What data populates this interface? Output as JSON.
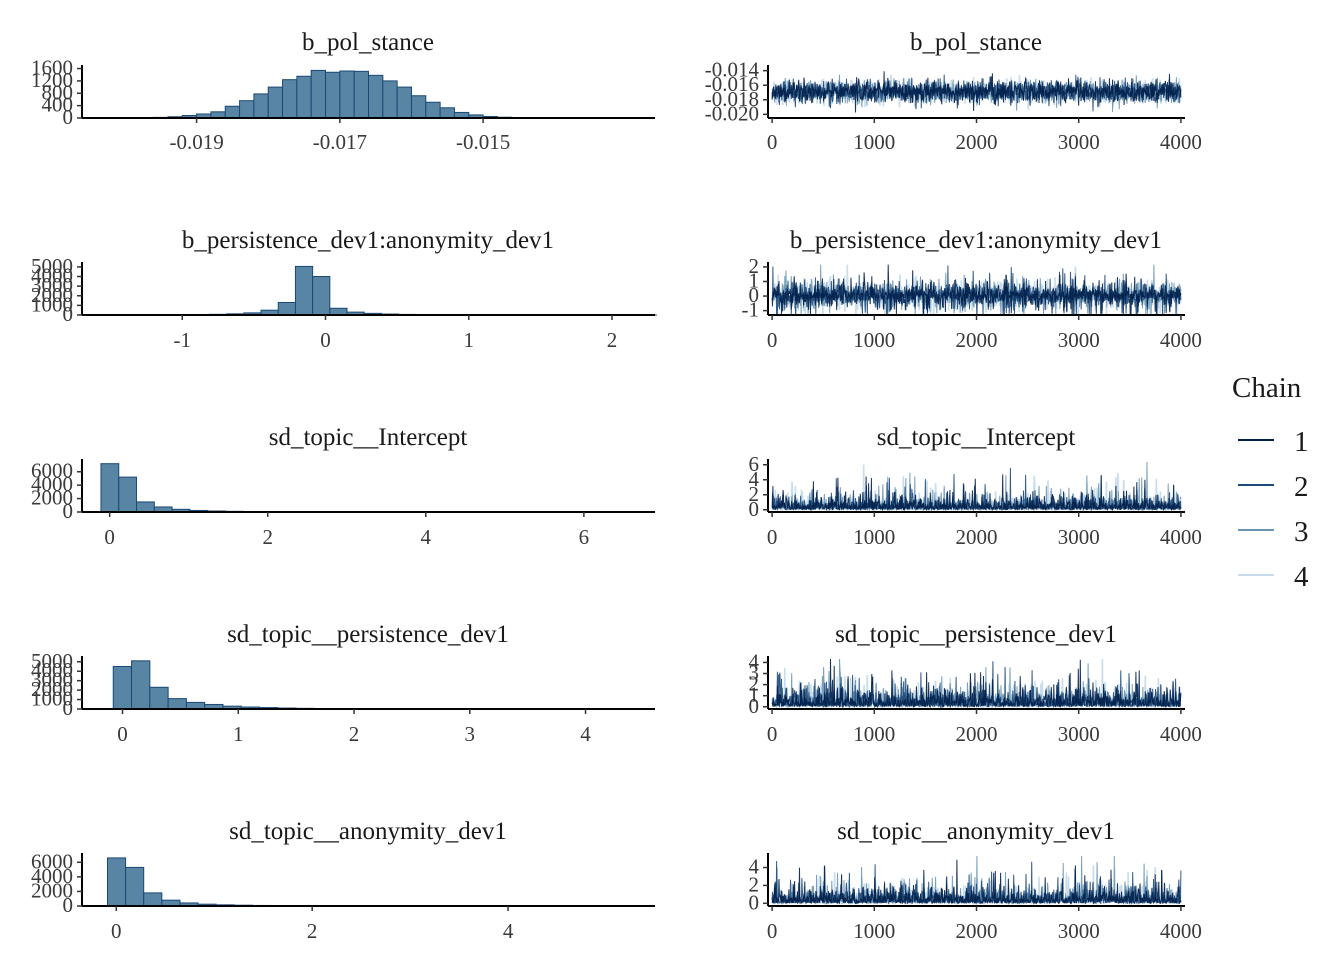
{
  "chart_data": [
    {
      "type": "bar",
      "title": "b_pol_stance",
      "panel": "histogram",
      "x_ticks": [
        "-0.019",
        "-0.017",
        "-0.015"
      ],
      "x_tick_values": [
        -0.019,
        -0.017,
        -0.015
      ],
      "xlim": [
        -0.0206,
        -0.0126
      ],
      "y_ticks": [
        "0",
        "400",
        "800",
        "1200",
        "1600"
      ],
      "y_tick_values": [
        0,
        400,
        800,
        1200,
        1600
      ],
      "ylim": [
        0,
        1650
      ],
      "bin_start": -0.02,
      "bin_width": 0.0002,
      "values": [
        5,
        10,
        20,
        40,
        80,
        130,
        200,
        380,
        560,
        780,
        1000,
        1240,
        1350,
        1540,
        1480,
        1520,
        1510,
        1380,
        1200,
        1000,
        720,
        510,
        330,
        180,
        100,
        50,
        25,
        10,
        5,
        2
      ]
    },
    {
      "type": "line",
      "title": "b_pol_stance",
      "panel": "trace",
      "x_ticks": [
        "0",
        "1000",
        "2000",
        "3000",
        "4000"
      ],
      "x_tick_values": [
        0,
        1000,
        2000,
        3000,
        4000
      ],
      "xlim": [
        -40,
        4040
      ],
      "y_ticks": [
        "-0.014",
        "-0.016",
        "-0.018",
        "-0.020"
      ],
      "y_tick_values": [
        -0.014,
        -0.016,
        -0.018,
        -0.02
      ],
      "ylim": [
        -0.0205,
        -0.0135
      ],
      "center": -0.0169,
      "spread": 0.0018,
      "noise": "normal",
      "seed": 11
    },
    {
      "type": "bar",
      "title": "b_persistence_dev1:anonymity_dev1",
      "panel": "histogram",
      "x_ticks": [
        "-1",
        "0",
        "1",
        "2"
      ],
      "x_tick_values": [
        -1,
        0,
        1,
        2
      ],
      "xlim": [
        -1.7,
        2.3
      ],
      "y_ticks": [
        "0",
        "1000",
        "2000",
        "3000",
        "4000",
        "5000"
      ],
      "y_tick_values": [
        0,
        1000,
        2000,
        3000,
        4000,
        5000
      ],
      "ylim": [
        0,
        5300
      ],
      "bin_start": -1.65,
      "bin_width": 0.12,
      "values": [
        5,
        8,
        10,
        15,
        20,
        30,
        45,
        70,
        120,
        220,
        500,
        1300,
        5050,
        4000,
        700,
        300,
        170,
        100,
        60,
        35,
        25,
        15,
        10,
        8,
        5,
        4,
        3,
        2,
        2,
        1,
        1,
        1,
        1
      ]
    },
    {
      "type": "line",
      "title": "b_persistence_dev1:anonymity_dev1",
      "panel": "trace",
      "x_ticks": [
        "0",
        "1000",
        "2000",
        "3000",
        "4000"
      ],
      "x_tick_values": [
        0,
        1000,
        2000,
        3000,
        4000
      ],
      "xlim": [
        -40,
        4040
      ],
      "y_ticks": [
        "-1",
        "0",
        "1",
        "2"
      ],
      "y_tick_values": [
        -1,
        0,
        1,
        2
      ],
      "ylim": [
        -1.3,
        2.2
      ],
      "center": 0.05,
      "spread": 0.35,
      "noise": "laplace",
      "seed": 23
    },
    {
      "type": "bar",
      "title": "sd_topic__Intercept",
      "panel": "histogram",
      "x_ticks": [
        "0",
        "2",
        "4",
        "6"
      ],
      "x_tick_values": [
        0,
        2,
        4,
        6
      ],
      "xlim": [
        -0.35,
        6.9
      ],
      "y_ticks": [
        "0",
        "2000",
        "4000",
        "6000"
      ],
      "y_tick_values": [
        0,
        2000,
        4000,
        6000
      ],
      "ylim": [
        0,
        7600
      ],
      "bin_start": -0.11,
      "bin_width": 0.225,
      "values": [
        7200,
        5200,
        1500,
        750,
        400,
        230,
        150,
        100,
        70,
        50,
        35,
        25,
        18,
        12,
        9,
        7,
        5,
        4,
        3,
        2,
        2,
        1,
        1,
        1,
        1,
        1,
        1,
        1,
        1,
        1
      ]
    },
    {
      "type": "line",
      "title": "sd_topic__Intercept",
      "panel": "trace",
      "x_ticks": [
        "0",
        "1000",
        "2000",
        "3000",
        "4000"
      ],
      "x_tick_values": [
        0,
        1000,
        2000,
        3000,
        4000
      ],
      "xlim": [
        -40,
        4040
      ],
      "y_ticks": [
        "0",
        "2",
        "4",
        "6"
      ],
      "y_tick_values": [
        0,
        2,
        4,
        6
      ],
      "ylim": [
        -0.3,
        6.5
      ],
      "center": 0.45,
      "spread": 0.55,
      "noise": "exp",
      "seed": 37
    },
    {
      "type": "bar",
      "title": "sd_topic__persistence_dev1",
      "panel": "histogram",
      "x_ticks": [
        "0",
        "1",
        "2",
        "3",
        "4"
      ],
      "x_tick_values": [
        0,
        1,
        2,
        3,
        4
      ],
      "xlim": [
        -0.35,
        4.6
      ],
      "y_ticks": [
        "0",
        "1000",
        "2000",
        "3000",
        "4000",
        "5000"
      ],
      "y_tick_values": [
        0,
        1000,
        2000,
        3000,
        4000,
        5000
      ],
      "ylim": [
        0,
        5400
      ],
      "bin_start": -0.08,
      "bin_width": 0.158,
      "values": [
        4500,
        5100,
        2300,
        1100,
        700,
        480,
        300,
        210,
        150,
        100,
        70,
        50,
        35,
        25,
        18,
        12,
        9,
        7,
        5,
        4,
        3,
        2,
        2,
        1,
        1,
        1,
        1,
        1,
        1
      ]
    },
    {
      "type": "line",
      "title": "sd_topic__persistence_dev1",
      "panel": "trace",
      "x_ticks": [
        "0",
        "1000",
        "2000",
        "3000",
        "4000"
      ],
      "x_tick_values": [
        0,
        1000,
        2000,
        3000,
        4000
      ],
      "xlim": [
        -40,
        4040
      ],
      "y_ticks": [
        "0",
        "1",
        "2",
        "3",
        "4"
      ],
      "y_tick_values": [
        0,
        1,
        2,
        3,
        4
      ],
      "ylim": [
        -0.2,
        4.4
      ],
      "center": 0.35,
      "spread": 0.5,
      "noise": "exp",
      "seed": 53
    },
    {
      "type": "bar",
      "title": "sd_topic__anonymity_dev1",
      "panel": "histogram",
      "x_ticks": [
        "0",
        "2",
        "4"
      ],
      "x_tick_values": [
        0,
        2,
        4
      ],
      "xlim": [
        -0.35,
        5.5
      ],
      "y_ticks": [
        "0",
        "2000",
        "4000",
        "6000"
      ],
      "y_tick_values": [
        0,
        2000,
        4000,
        6000
      ],
      "ylim": [
        0,
        7000
      ],
      "bin_start": -0.09,
      "bin_width": 0.185,
      "values": [
        6600,
        5300,
        1800,
        800,
        420,
        250,
        160,
        110,
        75,
        50,
        35,
        25,
        18,
        12,
        9,
        7,
        5,
        4,
        3,
        2,
        2,
        1,
        1,
        1,
        1,
        1,
        1,
        1,
        1,
        1
      ]
    },
    {
      "type": "line",
      "title": "sd_topic__anonymity_dev1",
      "panel": "trace",
      "x_ticks": [
        "0",
        "1000",
        "2000",
        "3000",
        "4000"
      ],
      "x_tick_values": [
        0,
        1000,
        2000,
        3000,
        4000
      ],
      "xlim": [
        -40,
        4040
      ],
      "y_ticks": [
        "0",
        "2",
        "4"
      ],
      "y_tick_values": [
        0,
        2,
        4
      ],
      "ylim": [
        -0.3,
        5.4
      ],
      "center": 0.45,
      "spread": 0.55,
      "noise": "exp",
      "seed": 71
    }
  ],
  "legend": {
    "title": "Chain",
    "items": [
      {
        "label": "1",
        "color": "#011f4b"
      },
      {
        "label": "2",
        "color": "#1e4a79"
      },
      {
        "label": "3",
        "color": "#6a96b4"
      },
      {
        "label": "4",
        "color": "#c6dcec"
      }
    ]
  },
  "colors": {
    "bar_fill": "#5885a4",
    "bar_stroke": "#1b4876"
  }
}
